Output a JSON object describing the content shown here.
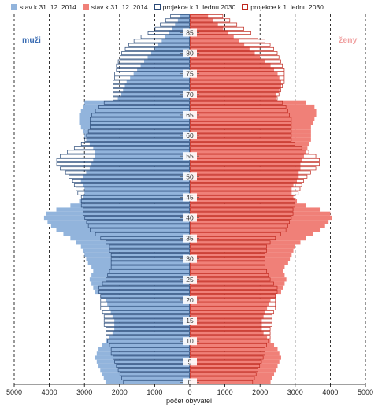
{
  "legend": [
    {
      "label": "stav k 31. 12. 2014",
      "style": "fill",
      "color": "#92b4dc"
    },
    {
      "label": "stav k 31. 12. 2014",
      "style": "fill",
      "color": "#f08078"
    },
    {
      "label": "projekce k 1. lednu 2030",
      "style": "outline",
      "color": "#2a4a78"
    },
    {
      "label": "projekce k 1. lednu 2030",
      "style": "outline",
      "color": "#c0281e"
    }
  ],
  "labels": {
    "men": "muži",
    "women": "ženy",
    "xlabel": "počet obyvatel"
  },
  "colors": {
    "men_2014": "#92b4dc",
    "women_2014": "#f08078",
    "men_2030_line": "#2a4a78",
    "women_2030_line": "#c0281e",
    "men_label": "#3c6eb4",
    "women_label": "#f0a0a0"
  },
  "chart_data": {
    "type": "bar",
    "orientation": "horizontal-pyramid",
    "ages_from": 0,
    "ages_to": 89,
    "y_ticks": [
      0,
      5,
      10,
      15,
      20,
      25,
      30,
      35,
      40,
      45,
      50,
      55,
      60,
      65,
      70,
      75,
      80,
      85
    ],
    "x_ticks": [
      -5000,
      -4000,
      -3000,
      -2000,
      -1000,
      0,
      1000,
      2000,
      3000,
      4000,
      5000
    ],
    "x_tick_labels": [
      "5000",
      "4000",
      "3000",
      "2000",
      "1000",
      "0",
      "1000",
      "2000",
      "3000",
      "4000",
      "5000"
    ],
    "xlim": [
      -5000,
      5000
    ],
    "series": [
      {
        "name": "stav k 31. 12. 2014",
        "values": [
          2400,
          2450,
          2500,
          2550,
          2600,
          2650,
          2700,
          2650,
          2600,
          2500,
          2400,
          2300,
          2200,
          2150,
          2150,
          2150,
          2200,
          2250,
          2300,
          2350,
          2400,
          2550,
          2700,
          2750,
          2800,
          2850,
          2800,
          2750,
          2800,
          2900,
          2950,
          3000,
          3050,
          3100,
          3250,
          3400,
          3600,
          3800,
          3950,
          4050,
          4150,
          4100,
          3800,
          3400,
          3150,
          3050,
          3000,
          3000,
          3050,
          3100,
          3050,
          2950,
          2850,
          2800,
          2750,
          2700,
          2700,
          2750,
          2850,
          2950,
          3000,
          3050,
          3100,
          3150,
          3150,
          3150,
          3100,
          3050,
          3000,
          2050,
          1950,
          1900,
          1850,
          1800,
          1700,
          1600,
          1500,
          1400,
          1300,
          1200,
          1100,
          1000,
          900,
          800,
          700,
          600,
          500,
          420,
          340,
          280
        ]
      },
      {
        "name": "stav k 31. 12. 2014",
        "values": [
          2300,
          2350,
          2400,
          2450,
          2500,
          2550,
          2600,
          2550,
          2500,
          2400,
          2300,
          2200,
          2100,
          2050,
          2050,
          2050,
          2100,
          2150,
          2200,
          2250,
          2300,
          2450,
          2600,
          2650,
          2700,
          2750,
          2700,
          2650,
          2700,
          2800,
          2850,
          2900,
          2950,
          3000,
          3150,
          3300,
          3500,
          3700,
          3850,
          3950,
          4050,
          4000,
          3700,
          3300,
          3050,
          2950,
          2900,
          2900,
          2950,
          3050,
          3100,
          3100,
          3150,
          3150,
          3200,
          3250,
          3300,
          3350,
          3400,
          3450,
          3450,
          3450,
          3450,
          3500,
          3550,
          3600,
          3600,
          3550,
          3300,
          2450,
          2450,
          2550,
          2600,
          2600,
          2550,
          2500,
          2400,
          2300,
          2150,
          2000,
          1850,
          1700,
          1550,
          1400,
          1250,
          1100,
          950,
          800,
          650,
          520
        ]
      },
      {
        "name": "projekce k 1. lednu 2030",
        "values": [
          1900,
          1950,
          2000,
          2050,
          2100,
          2150,
          2200,
          2250,
          2250,
          2300,
          2350,
          2400,
          2400,
          2400,
          2450,
          2450,
          2450,
          2500,
          2550,
          2550,
          2550,
          2550,
          2600,
          2600,
          2500,
          2400,
          2350,
          2300,
          2250,
          2250,
          2250,
          2250,
          2300,
          2300,
          2400,
          2550,
          2700,
          2850,
          2900,
          2950,
          3000,
          3050,
          3050,
          3100,
          3100,
          3100,
          3200,
          3250,
          3300,
          3350,
          3450,
          3550,
          3700,
          3800,
          3800,
          3700,
          3500,
          3300,
          3100,
          3000,
          2950,
          2900,
          2850,
          2850,
          2850,
          2800,
          2700,
          2600,
          2450,
          2200,
          2200,
          2200,
          2200,
          2200,
          2150,
          2150,
          2100,
          2100,
          2050,
          2000,
          1950,
          1850,
          1750,
          1600,
          1400,
          1200,
          1000,
          850,
          700,
          560
        ]
      },
      {
        "name": "projekce k 1. lednu 2030",
        "values": [
          1800,
          1850,
          1900,
          1950,
          2000,
          2050,
          2100,
          2150,
          2150,
          2200,
          2250,
          2300,
          2300,
          2300,
          2350,
          2350,
          2350,
          2400,
          2450,
          2450,
          2450,
          2450,
          2500,
          2500,
          2400,
          2300,
          2250,
          2200,
          2150,
          2150,
          2150,
          2150,
          2200,
          2200,
          2300,
          2450,
          2600,
          2750,
          2800,
          2850,
          2900,
          2950,
          2950,
          3000,
          3000,
          3000,
          3100,
          3150,
          3200,
          3250,
          3350,
          3450,
          3600,
          3700,
          3700,
          3600,
          3400,
          3200,
          3000,
          2900,
          2900,
          2900,
          2900,
          2900,
          2900,
          2850,
          2800,
          2750,
          2650,
          2500,
          2550,
          2600,
          2650,
          2700,
          2700,
          2700,
          2700,
          2650,
          2600,
          2550,
          2500,
          2400,
          2300,
          2150,
          1950,
          1750,
          1550,
          1350,
          1150,
          950
        ]
      }
    ]
  }
}
